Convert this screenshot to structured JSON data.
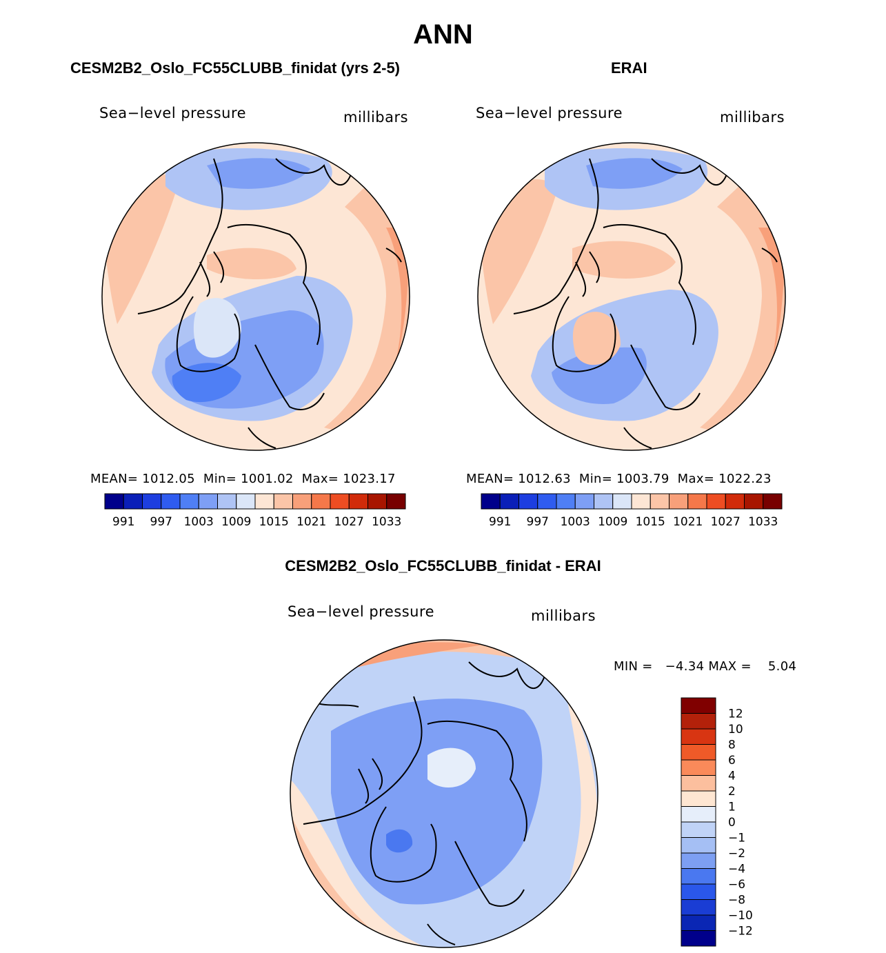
{
  "figure_title": "ANN",
  "panels": [
    {
      "title": "CESM2B2_Oslo_FC55CLUBB_finidat (yrs 2-5)",
      "variable": "Sea−level pressure",
      "units": "millibars",
      "stats": "MEAN= 1012.05  Min= 1001.02  Max= 1023.17"
    },
    {
      "title": "ERAI",
      "variable": "Sea−level pressure",
      "units": "millibars",
      "stats": "MEAN= 1012.63  Min= 1003.79  Max= 1022.23"
    },
    {
      "title": "CESM2B2_Oslo_FC55CLUBB_finidat - ERAI",
      "variable": "Sea−level pressure",
      "units": "millibars",
      "stats": "MIN =   −4.34 MAX =    5.04"
    }
  ],
  "chart_data": [
    {
      "type": "heatmap",
      "projection": "north-polar-stereographic",
      "title": "CESM2B2_Oslo_FC55CLUBB_finidat (yrs 2-5)",
      "field": "Sea−level pressure",
      "units": "millibars",
      "mean": 1012.05,
      "min": 1001.02,
      "max": 1023.17,
      "colorbar_ticks": [
        "991",
        "997",
        "1003",
        "1009",
        "1015",
        "1021",
        "1027",
        "1033"
      ],
      "colorbar_colors": [
        "#00008b",
        "#0a1fb8",
        "#1d3ee0",
        "#2f5cf0",
        "#4f7ff5",
        "#7e9ff5",
        "#afc4f5",
        "#dbe6f8",
        "#fde6d5",
        "#fbc5a8",
        "#f8a07a",
        "#f5784a",
        "#ee4d22",
        "#d12b0a",
        "#a81500",
        "#780000"
      ],
      "colorbar_orientation": "horizontal"
    },
    {
      "type": "heatmap",
      "projection": "north-polar-stereographic",
      "title": "ERAI",
      "field": "Sea−level pressure",
      "units": "millibars",
      "mean": 1012.63,
      "min": 1003.79,
      "max": 1022.23,
      "colorbar_ticks": [
        "991",
        "997",
        "1003",
        "1009",
        "1015",
        "1021",
        "1027",
        "1033"
      ],
      "colorbar_colors": [
        "#00008b",
        "#0a1fb8",
        "#1d3ee0",
        "#2f5cf0",
        "#4f7ff5",
        "#7e9ff5",
        "#afc4f5",
        "#dbe6f8",
        "#fde6d5",
        "#fbc5a8",
        "#f8a07a",
        "#f5784a",
        "#ee4d22",
        "#d12b0a",
        "#a81500",
        "#780000"
      ],
      "colorbar_orientation": "horizontal"
    },
    {
      "type": "heatmap",
      "projection": "north-polar-stereographic",
      "title": "CESM2B2_Oslo_FC55CLUBB_finidat - ERAI",
      "field": "Sea−level pressure",
      "units": "millibars",
      "min": -4.34,
      "max": 5.04,
      "colorbar_ticks": [
        "12",
        "10",
        "8",
        "6",
        "4",
        "2",
        "1",
        "0",
        "−1",
        "−2",
        "−4",
        "−6",
        "−8",
        "−10",
        "−12"
      ],
      "colorbar_colors": [
        "#800000",
        "#b3210a",
        "#d83512",
        "#ef5a28",
        "#fa8a5a",
        "#fcbf9e",
        "#fee6d2",
        "#e6eefa",
        "#c0d3f7",
        "#a5bff4",
        "#7d9ff2",
        "#4a78f0",
        "#2a57ea",
        "#1a3dd4",
        "#0a26b4",
        "#00008b"
      ],
      "colorbar_orientation": "vertical"
    }
  ]
}
